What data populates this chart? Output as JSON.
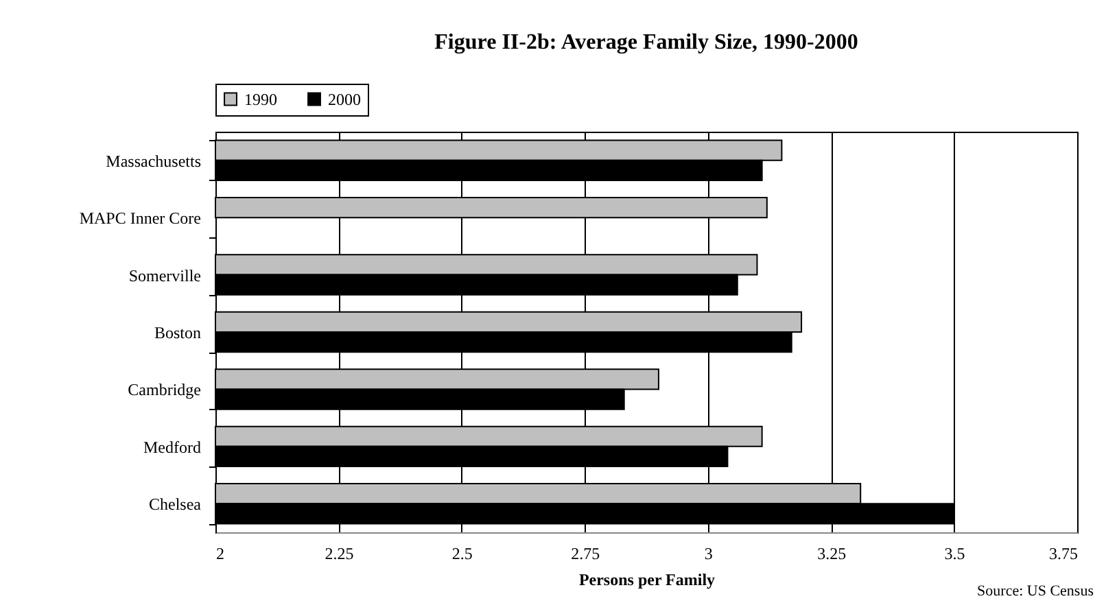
{
  "chart_data": {
    "type": "bar",
    "orientation": "horizontal",
    "title": "Figure II-2b: Average Family Size, 1990-2000",
    "xlabel": "Persons per Family",
    "categories": [
      "Massachusetts",
      "MAPC Inner Core",
      "Somerville",
      "Boston",
      "Cambridge",
      "Medford",
      "Chelsea"
    ],
    "series": [
      {
        "name": "1990",
        "color": "#bfbfbf",
        "values": [
          3.15,
          3.12,
          3.1,
          3.19,
          2.9,
          3.11,
          3.31
        ]
      },
      {
        "name": "2000",
        "color": "#000000",
        "values": [
          3.11,
          null,
          3.06,
          3.17,
          2.83,
          3.04,
          3.5
        ]
      }
    ],
    "xlim": [
      2,
      3.75
    ],
    "xticks": [
      2,
      2.25,
      2.5,
      2.75,
      3,
      3.25,
      3.5,
      3.75
    ],
    "grid": "x",
    "legend": "top",
    "annotations": [
      "Source: US Census"
    ]
  }
}
